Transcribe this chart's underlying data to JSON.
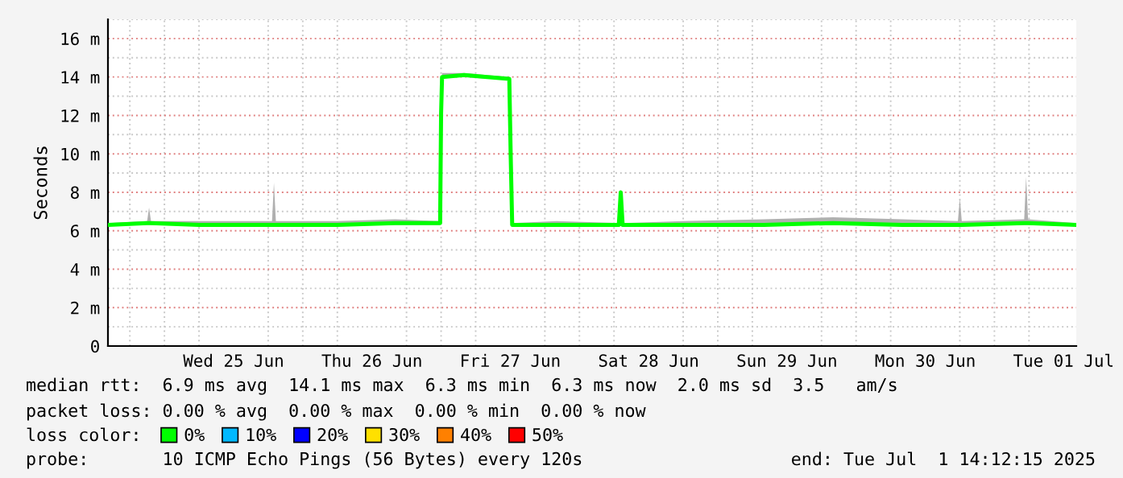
{
  "chart_data": {
    "type": "line",
    "ylabel": "Seconds",
    "xlim": [
      "2025-06-24T14:12",
      "2025-07-01T14:12"
    ],
    "xticks": [
      {
        "value": "2025-06-25T12:00",
        "label": "Wed 25 Jun"
      },
      {
        "value": "2025-06-26T12:00",
        "label": "Thu 26 Jun"
      },
      {
        "value": "2025-06-27T12:00",
        "label": "Fri 27 Jun"
      },
      {
        "value": "2025-06-28T12:00",
        "label": "Sat 28 Jun"
      },
      {
        "value": "2025-06-29T12:00",
        "label": "Sun 29 Jun"
      },
      {
        "value": "2025-06-30T12:00",
        "label": "Mon 30 Jun"
      },
      {
        "value": "2025-07-01T12:00",
        "label": "Tue 01 Jul"
      }
    ],
    "ylim": [
      0,
      17
    ],
    "yticks": [
      0,
      {
        "value": 2,
        "label": "2 m"
      },
      {
        "value": 4,
        "label": "4 m"
      },
      {
        "value": 6,
        "label": "6 m"
      },
      {
        "value": 8,
        "label": "8 m"
      },
      {
        "value": 10,
        "label": "10 m"
      },
      {
        "value": 12,
        "label": "12 m"
      },
      {
        "value": 14,
        "label": "14 m"
      },
      {
        "value": 16,
        "label": "16 m"
      }
    ],
    "grid": true,
    "legend": "bottom",
    "legend_title": "loss color:",
    "series": [
      {
        "name": "0%",
        "color": "#00ff00",
        "x": [
          "2025-06-24T14:12",
          "2025-06-24T21:00",
          "2025-06-24T21:20",
          "2025-06-24T21:40",
          "2025-06-25T06:00",
          "2025-06-25T12:00",
          "2025-06-25T18:40",
          "2025-06-25T19:00",
          "2025-06-25T19:20",
          "2025-06-26T06:00",
          "2025-06-26T16:00",
          "2025-06-26T23:50",
          "2025-06-27T00:00",
          "2025-06-27T00:10",
          "2025-06-27T04:00",
          "2025-06-27T08:00",
          "2025-06-27T11:50",
          "2025-06-27T12:05",
          "2025-06-27T12:20",
          "2025-06-27T20:00",
          "2025-06-28T06:50",
          "2025-06-28T07:10",
          "2025-06-28T07:30",
          "2025-06-28T18:00",
          "2025-06-29T08:00",
          "2025-06-29T20:00",
          "2025-06-30T08:00",
          "2025-06-30T17:40",
          "2025-06-30T18:00",
          "2025-06-30T18:20",
          "2025-07-01T05:10",
          "2025-07-01T05:30",
          "2025-07-01T05:50",
          "2025-07-01T14:12"
        ],
        "values": [
          6.3,
          6.4,
          6.4,
          6.4,
          6.3,
          6.3,
          6.3,
          6.3,
          6.3,
          6.3,
          6.4,
          6.4,
          12.1,
          14.0,
          14.1,
          14.0,
          13.9,
          9.8,
          6.3,
          6.3,
          6.3,
          8.0,
          6.3,
          6.3,
          6.3,
          6.4,
          6.3,
          6.3,
          6.3,
          6.3,
          6.4,
          6.4,
          6.4,
          6.3
        ],
        "lower": [
          6.3,
          6.3,
          6.3,
          6.3,
          6.3,
          6.3,
          6.3,
          6.3,
          6.3,
          6.3,
          6.3,
          6.3,
          12.1,
          14.0,
          14.0,
          13.9,
          13.9,
          9.8,
          6.3,
          6.3,
          6.3,
          8.0,
          6.3,
          6.3,
          6.3,
          6.3,
          6.3,
          6.3,
          6.3,
          6.3,
          6.3,
          6.3,
          6.3,
          6.3
        ],
        "upper": [
          6.4,
          6.5,
          7.2,
          6.5,
          6.5,
          6.5,
          6.5,
          8.5,
          6.5,
          6.5,
          6.6,
          6.5,
          12.1,
          14.2,
          14.2,
          14.1,
          14.0,
          9.8,
          6.4,
          6.5,
          6.4,
          8.0,
          6.4,
          6.5,
          6.6,
          6.7,
          6.6,
          6.5,
          7.7,
          6.5,
          6.6,
          8.8,
          6.6,
          6.4
        ]
      },
      {
        "name": "10%",
        "color": "#00b8ff"
      },
      {
        "name": "20%",
        "color": "#0000ff"
      },
      {
        "name": "30%",
        "color": "#ffe000"
      },
      {
        "name": "40%",
        "color": "#ff8000"
      },
      {
        "name": "50%",
        "color": "#ff0000"
      }
    ],
    "annotations": [
      "median rtt:  6.9 ms avg  14.1 ms max  6.3 ms min  6.3 ms now  2.0 ms sd  3.5   am/s",
      "packet loss: 0.00 % avg  0.00 % max  0.00 % min  0.00 % now",
      "probe:       10 ICMP Echo Pings (56 Bytes) every 120s",
      "end: Tue Jul  1 14:12:15 2025"
    ]
  }
}
